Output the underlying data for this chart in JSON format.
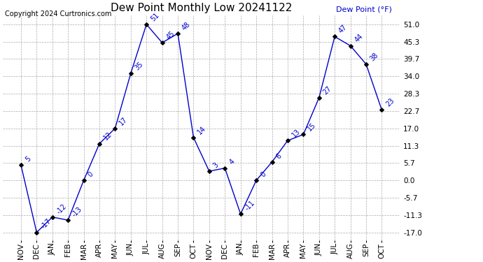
{
  "title": "Dew Point Monthly Low 20241122",
  "copyright": "Copyright 2024 Curtronics.com",
  "ylabel": "Dew Point (°F)",
  "months": [
    "NOV",
    "DEC",
    "JAN",
    "FEB",
    "MAR",
    "APR",
    "MAY",
    "JUN",
    "JUL",
    "AUG",
    "SEP",
    "OCT",
    "NOV",
    "DEC",
    "JAN",
    "FEB",
    "MAR",
    "APR",
    "MAY",
    "JUN",
    "JUL",
    "AUG",
    "SEP",
    "OCT"
  ],
  "values": [
    5,
    -17,
    -12,
    -13,
    0,
    12,
    17,
    35,
    51,
    45,
    48,
    14,
    3,
    4,
    -11,
    0,
    6,
    13,
    15,
    27,
    47,
    44,
    38,
    23
  ],
  "line_color": "#0000cc",
  "marker_color": "#000000",
  "label_color": "#0000cc",
  "background_color": "#ffffff",
  "grid_color": "#aaaaaa",
  "yticks": [
    51.0,
    45.3,
    39.7,
    34.0,
    28.3,
    22.7,
    17.0,
    11.3,
    5.7,
    0.0,
    -5.7,
    -11.3,
    -17.0
  ],
  "ylim": [
    -19.5,
    54.0
  ],
  "title_fontsize": 11,
  "copyright_fontsize": 7,
  "ylabel_fontsize": 8,
  "tick_fontsize": 7.5,
  "label_fontsize": 7
}
